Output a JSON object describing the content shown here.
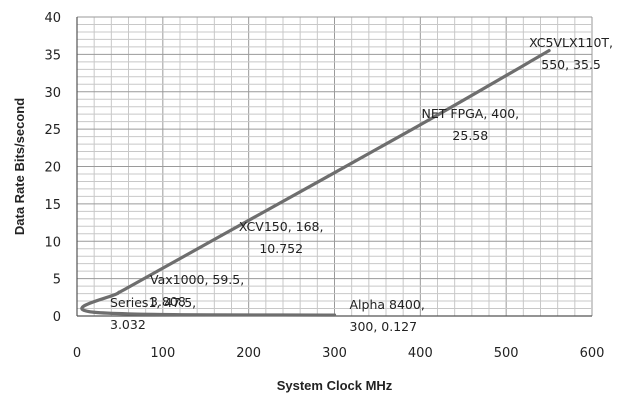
{
  "chart_data": {
    "type": "scatter",
    "title": "",
    "xlabel": "System Clock MHz",
    "ylabel": "Data Rate Bits/second",
    "xlim": [
      0,
      600
    ],
    "ylim": [
      0,
      40
    ],
    "x_ticks": [
      "0",
      "100",
      "200",
      "300",
      "400",
      "500",
      "600"
    ],
    "y_ticks": [
      "0",
      "5",
      "10",
      "15",
      "20",
      "25",
      "30",
      "35",
      "40"
    ],
    "grid": true,
    "legend": "none",
    "series_color": "#6e6e6e",
    "points": [
      {
        "x": 300,
        "y": 0.127,
        "label_lines": [
          "Alpha 8400,",
          "300, 0.127"
        ]
      },
      {
        "x": 20,
        "y": 0.5,
        "label_lines": []
      },
      {
        "x": 47.5,
        "y": 3.032,
        "label_lines": [
          "Series1, 47.5,",
          "3.032"
        ]
      },
      {
        "x": 59.5,
        "y": 3.808,
        "label_lines": [
          "Vax1000, 59.5,",
          "3.808"
        ]
      },
      {
        "x": 168,
        "y": 10.752,
        "label_lines": [
          "XCV150, 168,",
          "10.752"
        ]
      },
      {
        "x": 400,
        "y": 25.58,
        "label_lines": [
          "NET FPGA, 400,",
          "25.58"
        ]
      },
      {
        "x": 550,
        "y": 35.5,
        "label_lines": [
          "XC5VLX110T,",
          "550, 35.5"
        ]
      }
    ]
  }
}
